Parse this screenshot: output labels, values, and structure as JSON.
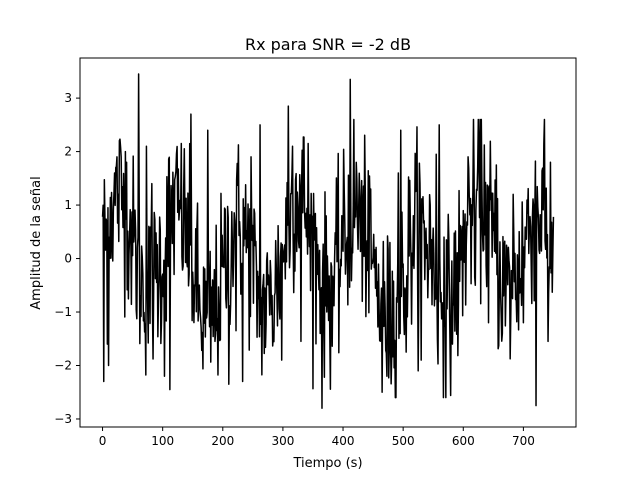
{
  "chart_data": {
    "type": "line",
    "title": "Rx para SNR = -2 dB",
    "xlabel": "Tiempo (s)",
    "ylabel": "Amplitud de la señal",
    "xlim": [
      -37.5,
      787.5
    ],
    "ylim": [
      -3.15,
      3.75
    ],
    "xticks": [
      0,
      100,
      200,
      300,
      400,
      500,
      600,
      700
    ],
    "yticks": [
      -3,
      -2,
      -1,
      0,
      1,
      2,
      3
    ],
    "grid": false,
    "series": [
      {
        "color": "#000000",
        "sampling": {
          "n": 751,
          "x_start": 0,
          "x_step": 1
        },
        "components": [
          {
            "amplitude": 0.92,
            "period": 100,
            "phase": 0.0
          },
          {
            "amplitude": 0.35,
            "period": 300,
            "phase": 0.5
          }
        ],
        "noise_std": 0.8,
        "peaks": [
          {
            "x": 0,
            "y": 0.78
          },
          {
            "x": 2,
            "y": -2.3
          },
          {
            "x": 8,
            "y": -1.6
          },
          {
            "x": 10,
            "y": -2.0
          },
          {
            "x": 20,
            "y": 1.6
          },
          {
            "x": 38,
            "y": 2.0
          },
          {
            "x": 60,
            "y": 3.45
          },
          {
            "x": 63,
            "y": -0.7
          },
          {
            "x": 73,
            "y": 2.1
          },
          {
            "x": 82,
            "y": 1.4
          },
          {
            "x": 98,
            "y": -1.2
          },
          {
            "x": 103,
            "y": -2.2
          },
          {
            "x": 112,
            "y": -2.45
          },
          {
            "x": 128,
            "y": 0.9
          },
          {
            "x": 147,
            "y": 2.7
          },
          {
            "x": 163,
            "y": -1.1
          },
          {
            "x": 175,
            "y": 2.4
          },
          {
            "x": 188,
            "y": -1.4
          },
          {
            "x": 210,
            "y": -2.35
          },
          {
            "x": 222,
            "y": -1.35
          },
          {
            "x": 233,
            "y": -2.3
          },
          {
            "x": 247,
            "y": 1.9
          },
          {
            "x": 262,
            "y": 2.5
          },
          {
            "x": 280,
            "y": -0.3
          },
          {
            "x": 298,
            "y": -1.9
          },
          {
            "x": 309,
            "y": 2.85
          },
          {
            "x": 316,
            "y": 2.1
          },
          {
            "x": 330,
            "y": -1.55
          },
          {
            "x": 346,
            "y": -0.6
          },
          {
            "x": 365,
            "y": -2.8
          },
          {
            "x": 373,
            "y": -1.0
          },
          {
            "x": 398,
            "y": 0.8
          },
          {
            "x": 412,
            "y": 3.35
          },
          {
            "x": 418,
            "y": 2.6
          },
          {
            "x": 432,
            "y": -0.8
          },
          {
            "x": 446,
            "y": 1.3
          },
          {
            "x": 465,
            "y": -2.5
          },
          {
            "x": 478,
            "y": 0.3
          },
          {
            "x": 492,
            "y": 1.6
          },
          {
            "x": 496,
            "y": 2.4
          },
          {
            "x": 505,
            "y": -1.75
          },
          {
            "x": 517,
            "y": 0.8
          },
          {
            "x": 530,
            "y": -1.9
          },
          {
            "x": 545,
            "y": 1.0
          },
          {
            "x": 555,
            "y": 1.95
          },
          {
            "x": 560,
            "y": 2.5
          },
          {
            "x": 568,
            "y": 0.4
          },
          {
            "x": 582,
            "y": -1.6
          },
          {
            "x": 598,
            "y": 0.6
          },
          {
            "x": 608,
            "y": 1.9
          },
          {
            "x": 620,
            "y": -0.5
          },
          {
            "x": 642,
            "y": -1.2
          },
          {
            "x": 655,
            "y": 1.75
          },
          {
            "x": 665,
            "y": -1.4
          },
          {
            "x": 683,
            "y": 1.2
          },
          {
            "x": 700,
            "y": -1.2
          },
          {
            "x": 712,
            "y": 0.6
          },
          {
            "x": 721,
            "y": -2.75
          },
          {
            "x": 734,
            "y": 2.15
          },
          {
            "x": 741,
            "y": -1.55
          },
          {
            "x": 745,
            "y": 1.8
          },
          {
            "x": 750,
            "y": 0.78
          }
        ]
      }
    ]
  }
}
